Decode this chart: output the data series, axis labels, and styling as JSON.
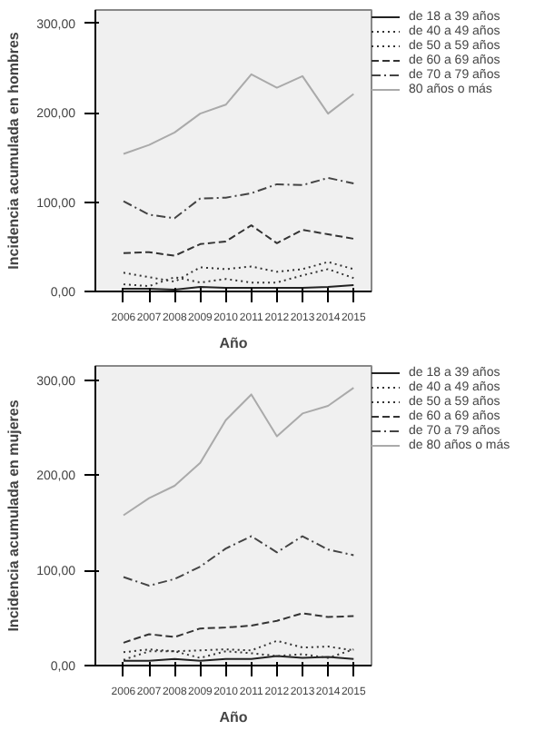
{
  "chart_data": [
    {
      "type": "line",
      "xlabel": "Año",
      "ylabel": "Incidencia acumulada en hombres",
      "x": [
        2006,
        2007,
        2008,
        2009,
        2010,
        2011,
        2012,
        2013,
        2014,
        2015
      ],
      "xlim": [
        2004.9,
        2015.7
      ],
      "xticks": [
        2006,
        2007,
        2008,
        2009,
        2010,
        2011,
        2012,
        2013,
        2014,
        2015
      ],
      "ylim": [
        0,
        315
      ],
      "yticks": [
        {
          "value": 0,
          "label": "0,00"
        },
        {
          "value": 100,
          "label": "100,00"
        },
        {
          "value": 200,
          "label": "200,00"
        },
        {
          "value": 300,
          "label": "300,00"
        }
      ],
      "grid": false,
      "legend": "top right",
      "series": [
        {
          "name": "de 18 a 39 años",
          "color": "#222222",
          "line_style": "solid",
          "values": [
            3,
            3,
            2,
            5,
            4,
            4,
            4,
            4,
            5,
            7
          ]
        },
        {
          "name": "de 40 a 49 años",
          "color": "#333333",
          "line_style": "dotted",
          "values": [
            8,
            6,
            16,
            10,
            14,
            10,
            10,
            18,
            25,
            15
          ]
        },
        {
          "name": "de 50 a 59 años",
          "color": "#333333",
          "line_style": "dotted",
          "values": [
            21,
            16,
            11,
            27,
            25,
            28,
            22,
            25,
            33,
            25
          ]
        },
        {
          "name": "de 60 a 69 años",
          "color": "#333333",
          "line_style": "dashed",
          "values": [
            43,
            44,
            40,
            53,
            56,
            74,
            54,
            69,
            64,
            59
          ]
        },
        {
          "name": "de 70 a 79 años",
          "color": "#444444",
          "line_style": "dashdot",
          "values": [
            101,
            86,
            82,
            104,
            105,
            110,
            120,
            119,
            127,
            121
          ]
        },
        {
          "name": "80 años o más",
          "color": "#aaaaaa",
          "line_style": "solid",
          "values": [
            154,
            164,
            178,
            199,
            209,
            243,
            228,
            241,
            199,
            221
          ]
        }
      ]
    },
    {
      "type": "line",
      "xlabel": "Año",
      "ylabel": "Incidencia acumulada en mujeres",
      "x": [
        2006,
        2007,
        2008,
        2009,
        2010,
        2011,
        2012,
        2013,
        2014,
        2015
      ],
      "xlim": [
        2004.9,
        2015.7
      ],
      "xticks": [
        2006,
        2007,
        2008,
        2009,
        2010,
        2011,
        2012,
        2013,
        2014,
        2015
      ],
      "ylim": [
        0,
        315
      ],
      "yticks": [
        {
          "value": 0,
          "label": "0,00"
        },
        {
          "value": 100,
          "label": "100,00"
        },
        {
          "value": 200,
          "label": "200,00"
        },
        {
          "value": 300,
          "label": "300,00"
        }
      ],
      "grid": false,
      "legend": "top right",
      "series": [
        {
          "name": "de 18 a 39 años",
          "color": "#222222",
          "line_style": "solid",
          "values": [
            5,
            5,
            7,
            5,
            7,
            7,
            10,
            8,
            9,
            7
          ]
        },
        {
          "name": "de 40 a 49 años",
          "color": "#333333",
          "line_style": "dotted",
          "values": [
            6,
            15,
            15,
            8,
            15,
            13,
            10,
            12,
            8,
            17
          ]
        },
        {
          "name": "de 50 a 59 años",
          "color": "#333333",
          "line_style": "dotted",
          "values": [
            14,
            17,
            15,
            16,
            17,
            16,
            26,
            19,
            20,
            16
          ]
        },
        {
          "name": "de 60 a 69 años",
          "color": "#333333",
          "line_style": "dashed",
          "values": [
            24,
            33,
            30,
            39,
            40,
            42,
            47,
            55,
            51,
            52
          ]
        },
        {
          "name": "de 70 a 79 años",
          "color": "#444444",
          "line_style": "dashdot",
          "values": [
            93,
            84,
            91,
            104,
            123,
            136,
            119,
            136,
            122,
            116
          ]
        },
        {
          "name": "de 80 años o más",
          "color": "#aaaaaa",
          "line_style": "solid",
          "values": [
            158,
            176,
            189,
            213,
            258,
            285,
            241,
            265,
            273,
            292
          ]
        }
      ]
    }
  ]
}
